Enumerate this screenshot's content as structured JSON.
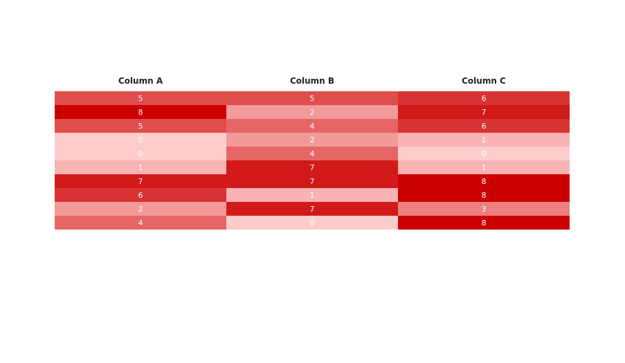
{
  "chart_data": {
    "type": "heatmap",
    "columns": [
      "Column A",
      "Column B",
      "Column C"
    ],
    "rows": [
      [
        5,
        5,
        6
      ],
      [
        8,
        2,
        7
      ],
      [
        5,
        4,
        6
      ],
      [
        0,
        2,
        1
      ],
      [
        0,
        4,
        0
      ],
      [
        1,
        7,
        1
      ],
      [
        7,
        7,
        8
      ],
      [
        6,
        1,
        8
      ],
      [
        2,
        7,
        3
      ],
      [
        4,
        0,
        8
      ]
    ],
    "value_range": [
      0,
      8
    ],
    "color_low": "#ffcccc",
    "color_high": "#cc0000",
    "label_color": "#ffffff"
  }
}
